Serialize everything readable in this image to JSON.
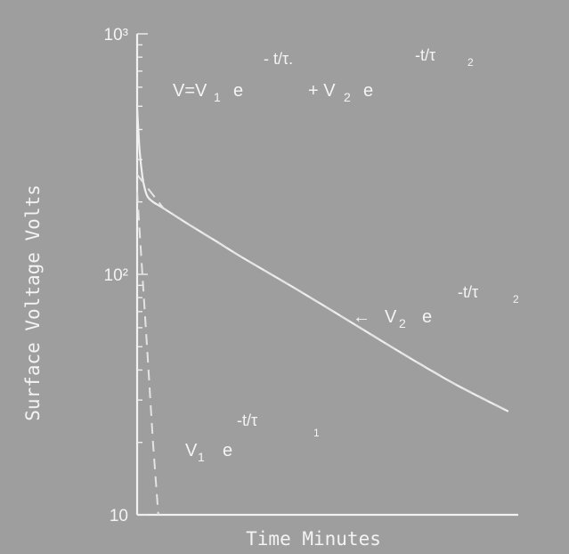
{
  "chart_data": {
    "type": "line",
    "title": "",
    "xlabel": "Time Minutes",
    "ylabel": "Surface Voltage Volts",
    "y_scale": "log",
    "ylim": [
      10,
      1000
    ],
    "y_ticks": [
      {
        "value": 10,
        "label": "10"
      },
      {
        "value": 100,
        "label": "10²"
      },
      {
        "value": 1000,
        "label": "10³"
      }
    ],
    "grid": false,
    "annotations": {
      "total": {
        "lhs": "V=V",
        "s1": "1",
        "e": "e",
        "exp1": "- t/τ.",
        "plus": "+ V",
        "s2": "2",
        "e2": "e",
        "exp2": "-t/τ",
        "exp2sub": "2"
      },
      "component_slow": {
        "arrow": "←",
        "coef": "V",
        "s": "2",
        "e": "e",
        "exp": "-t/τ",
        "expsub": "2"
      },
      "component_fast": {
        "coef": "V",
        "s": "1",
        "e": "e",
        "exp": "-t/τ",
        "expsub": "1"
      }
    },
    "series": [
      {
        "role": "total",
        "style": "solid",
        "x": [
          0,
          0.25,
          0.5,
          1,
          1.5,
          2,
          3,
          5,
          10,
          15,
          20,
          30,
          40,
          50,
          60,
          70
        ],
        "y": [
          490,
          390,
          320,
          255,
          225,
          210,
          200,
          188,
          160,
          137,
          117,
          87,
          64,
          47,
          35,
          27
        ]
      },
      {
        "role": "slow",
        "style": "dashed",
        "x": [
          0,
          5,
          10,
          20,
          30,
          40,
          50,
          60,
          70
        ],
        "y": [
          260,
          188,
          160,
          117,
          87,
          64,
          47,
          35,
          27
        ]
      },
      {
        "role": "fast",
        "style": "dashed",
        "x": [
          0,
          1,
          2,
          3,
          4
        ],
        "y": [
          220,
          100,
          45,
          20,
          10
        ]
      }
    ]
  }
}
